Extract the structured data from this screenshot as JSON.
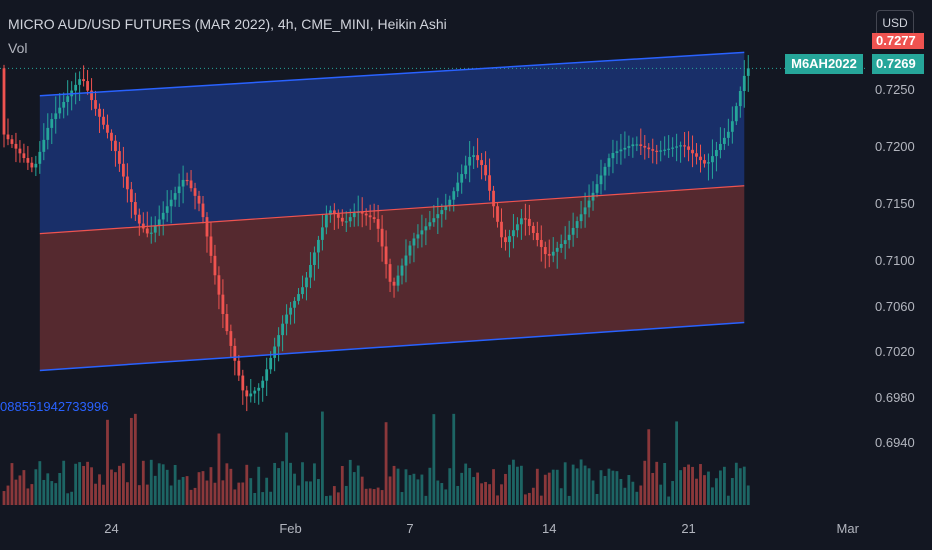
{
  "header": {
    "title": "MICRO AUD/USD FUTURES (MAR 2022), 4h, CME_MINI, Heikin Ashi",
    "volume_label": "Vol",
    "indicator_value": "088551942733996"
  },
  "currency_button": {
    "label": "USD"
  },
  "price_tags": {
    "symbol": "M6AH2022",
    "last_price": "0.7269",
    "upper_price": "0.7277"
  },
  "y_axis": {
    "ticks": [
      {
        "label": "0.7250",
        "value": 0.725
      },
      {
        "label": "0.7200",
        "value": 0.72
      },
      {
        "label": "0.7150",
        "value": 0.715
      },
      {
        "label": "0.7100",
        "value": 0.71
      },
      {
        "label": "0.7060",
        "value": 0.706
      },
      {
        "label": "0.7020",
        "value": 0.702
      },
      {
        "label": "0.6980",
        "value": 0.698
      },
      {
        "label": "0.6940",
        "value": 0.694
      }
    ]
  },
  "x_axis": {
    "ticks": [
      {
        "label": "24",
        "bar": 27
      },
      {
        "label": "Feb",
        "bar": 72
      },
      {
        "label": "7",
        "bar": 102
      },
      {
        "label": "14",
        "bar": 137
      },
      {
        "label": "21",
        "bar": 172
      },
      {
        "label": "Mar",
        "bar": 212
      }
    ]
  },
  "colors": {
    "up": "#26a69a",
    "down": "#ef5350",
    "upper_band": "#2962ff",
    "lower_band": "#ef5350"
  },
  "chart_data": {
    "type": "candlestick",
    "regression_channel": {
      "start_bar": 9,
      "end_bar": 186,
      "upper": [
        0.7245,
        0.7283
      ],
      "middle": [
        0.7124,
        0.7166
      ],
      "lower": [
        0.7004,
        0.7046
      ]
    },
    "price_path": [
      [
        0,
        0.7213
      ],
      [
        8,
        0.718
      ],
      [
        12,
        0.7222
      ],
      [
        20,
        0.7262
      ],
      [
        23,
        0.7237
      ],
      [
        28,
        0.7202
      ],
      [
        34,
        0.7135
      ],
      [
        37,
        0.7122
      ],
      [
        46,
        0.7174
      ],
      [
        50,
        0.7147
      ],
      [
        56,
        0.7045
      ],
      [
        61,
        0.698
      ],
      [
        65,
        0.699
      ],
      [
        71,
        0.705
      ],
      [
        76,
        0.708
      ],
      [
        82,
        0.7146
      ],
      [
        86,
        0.7133
      ],
      [
        89,
        0.7144
      ],
      [
        94,
        0.7136
      ],
      [
        98,
        0.7074
      ],
      [
        103,
        0.7118
      ],
      [
        112,
        0.715
      ],
      [
        118,
        0.7195
      ],
      [
        121,
        0.7182
      ],
      [
        126,
        0.7114
      ],
      [
        131,
        0.714
      ],
      [
        137,
        0.7103
      ],
      [
        142,
        0.712
      ],
      [
        148,
        0.7156
      ],
      [
        153,
        0.7194
      ],
      [
        159,
        0.7203
      ],
      [
        164,
        0.7196
      ],
      [
        167,
        0.7198
      ],
      [
        171,
        0.7202
      ],
      [
        177,
        0.7184
      ],
      [
        183,
        0.7216
      ],
      [
        187,
        0.7269
      ]
    ]
  }
}
